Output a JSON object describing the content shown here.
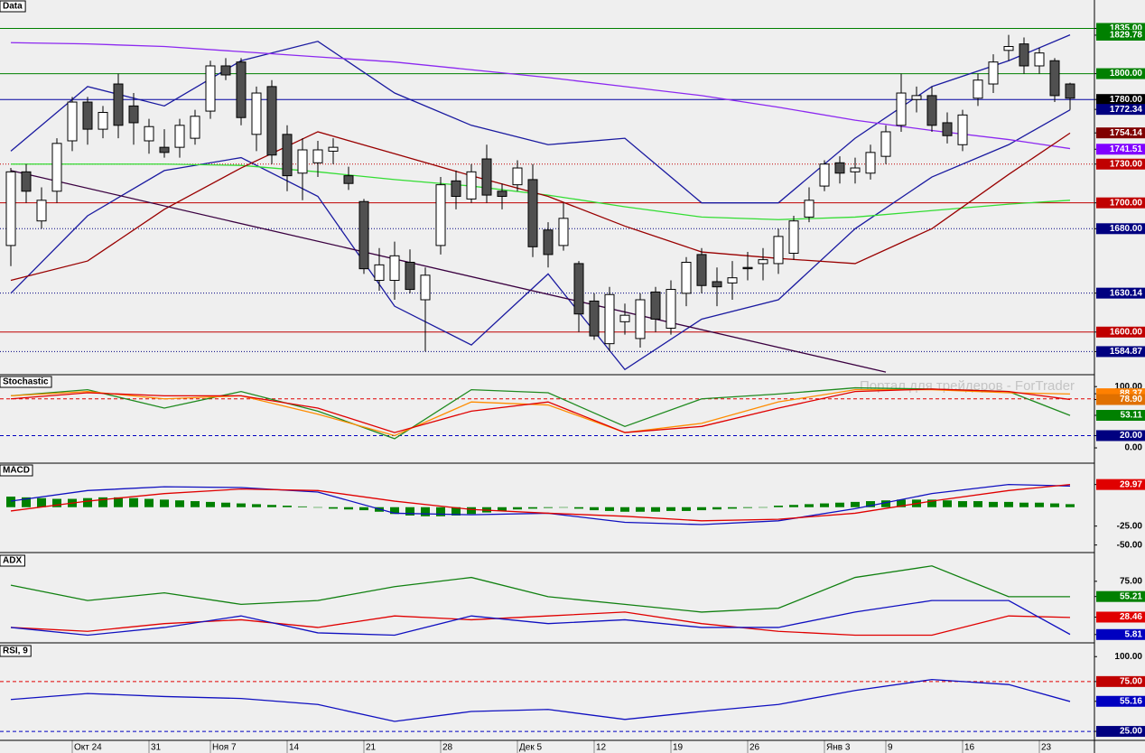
{
  "chart_data": [
    {
      "type": "candlestick",
      "title": "Data",
      "categories": [
        null,
        null,
        null,
        null,
        "Окт 24",
        null,
        null,
        null,
        null,
        "31",
        null,
        null,
        null,
        "Ноя 7",
        null,
        null,
        null,
        null,
        "14",
        null,
        null,
        null,
        null,
        "21",
        null,
        null,
        null,
        null,
        "28",
        null,
        null,
        null,
        null,
        "Дек 5",
        null,
        null,
        null,
        null,
        "12",
        null,
        null,
        null,
        null,
        "19",
        null,
        null,
        null,
        null,
        "26",
        null,
        null,
        null,
        null,
        "Янв 3",
        null,
        null,
        null,
        "9",
        null,
        null,
        null,
        null,
        "16",
        null,
        null,
        null,
        null,
        "23",
        null,
        null
      ],
      "open": [
        1667,
        1724,
        1686,
        1709,
        1748,
        1778,
        1757,
        1792,
        1775,
        1748,
        1743,
        1743,
        1750,
        1771,
        1806,
        1809,
        1753,
        1790,
        1753,
        1723,
        1731,
        1740,
        1721,
        1701,
        1640,
        1640,
        1654,
        1625,
        1667,
        1717,
        1703,
        1734,
        1709,
        1714,
        1718,
        1679,
        1667,
        1653,
        1624,
        1591,
        1608,
        1595,
        1631,
        1603,
        1630,
        1660,
        1639,
        1638,
        1650,
        1653,
        1653,
        1661,
        1689,
        1713,
        1731,
        1724,
        1723,
        1736,
        1760,
        1780,
        1783,
        1762,
        1745,
        1781,
        1792,
        1818,
        1823,
        1806,
        1810,
        1792
      ],
      "high": [
        1727,
        1730,
        1712,
        1750,
        1782,
        1782,
        1775,
        1800,
        1785,
        1765,
        1757,
        1765,
        1772,
        1810,
        1812,
        1812,
        1790,
        1795,
        1760,
        1750,
        1748,
        1750,
        1728,
        1703,
        1665,
        1670,
        1664,
        1650,
        1720,
        1725,
        1730,
        1745,
        1715,
        1733,
        1730,
        1685,
        1700,
        1655,
        1630,
        1635,
        1622,
        1630,
        1635,
        1640,
        1658,
        1665,
        1650,
        1655,
        1662,
        1665,
        1680,
        1690,
        1712,
        1733,
        1736,
        1735,
        1745,
        1760,
        1800,
        1790,
        1790,
        1770,
        1772,
        1800,
        1815,
        1830,
        1828,
        1820,
        1812,
        1793
      ],
      "low": [
        1651,
        1700,
        1680,
        1700,
        1740,
        1745,
        1750,
        1750,
        1745,
        1738,
        1735,
        1735,
        1745,
        1765,
        1795,
        1760,
        1740,
        1730,
        1709,
        1702,
        1720,
        1730,
        1710,
        1645,
        1632,
        1625,
        1630,
        1585,
        1660,
        1695,
        1700,
        1700,
        1695,
        1709,
        1658,
        1650,
        1663,
        1600,
        1594,
        1585,
        1598,
        1588,
        1600,
        1598,
        1620,
        1630,
        1620,
        1625,
        1640,
        1640,
        1645,
        1656,
        1685,
        1709,
        1715,
        1715,
        1718,
        1730,
        1755,
        1770,
        1755,
        1746,
        1740,
        1775,
        1785,
        1810,
        1800,
        1800,
        1778,
        1772
      ],
      "close": [
        1724,
        1709,
        1702,
        1746,
        1778,
        1757,
        1770,
        1760,
        1762,
        1759,
        1739,
        1760,
        1767,
        1806,
        1799,
        1766,
        1785,
        1737,
        1721,
        1741,
        1741,
        1743,
        1715,
        1649,
        1652,
        1659,
        1633,
        1644,
        1714,
        1705,
        1724,
        1706,
        1705,
        1727,
        1666,
        1660,
        1688,
        1614,
        1597,
        1629,
        1613,
        1625,
        1610,
        1633,
        1654,
        1636,
        1635,
        1642,
        1649,
        1656,
        1674,
        1686,
        1702,
        1730,
        1723,
        1727,
        1739,
        1755,
        1785,
        1783,
        1760,
        1752,
        1768,
        1795,
        1809,
        1821,
        1806,
        1816,
        1783,
        1781
      ],
      "up_color": "#ffffff",
      "down_color": "#505050",
      "ylim": [
        1567,
        1857
      ],
      "yticks": [
        {
          "value": 1835,
          "label": "1835.00",
          "color": "#008000",
          "line": "solid",
          "line_color": "#008000"
        },
        {
          "value": 1829.78,
          "label": "1829.78",
          "color": "#008000"
        },
        {
          "value": 1800,
          "label": "1800.00",
          "color": "#008000",
          "line": "solid",
          "line_color": "#008000"
        },
        {
          "value": 1780,
          "label": "1780.00",
          "color": "#000000",
          "line": "solid",
          "line_color": "#0000a0"
        },
        {
          "value": 1772.34,
          "label": "1772.34",
          "color": "#000080"
        },
        {
          "value": 1754.14,
          "label": "1754.14",
          "color": "#800000"
        },
        {
          "value": 1741.51,
          "label": "1741.51",
          "color": "#8000ff"
        },
        {
          "value": 1730,
          "label": "1730.00",
          "color": "#c00000",
          "line": "dotted",
          "line_color": "#c00000"
        },
        {
          "value": 1700,
          "label": "1700.00",
          "color": "#c00000",
          "line": "solid",
          "line_color": "#c00000"
        },
        {
          "value": 1680,
          "label": "1680.00",
          "color": "#000080",
          "line": "dotted",
          "line_color": "#000080"
        },
        {
          "value": 1630.14,
          "label": "1630.14",
          "color": "#000080",
          "line": "dotted",
          "line_color": "#000080"
        },
        {
          "value": 1600,
          "label": "1600.00",
          "color": "#c00000",
          "line": "solid",
          "line_color": "#c00000"
        },
        {
          "value": 1584.87,
          "label": "1584.87",
          "color": "#000080",
          "line": "dotted",
          "line_color": "#000080"
        }
      ],
      "series": [
        {
          "color": "#1a1aa0",
          "x": [
            0,
            5,
            10,
            15,
            20,
            25,
            30,
            35,
            40,
            45,
            50,
            55,
            60,
            65,
            69
          ],
          "values": [
            1740,
            1790,
            1775,
            1810,
            1825,
            1785,
            1760,
            1745,
            1750,
            1700,
            1700,
            1750,
            1790,
            1810,
            1830
          ]
        },
        {
          "color": "#1a1aa0",
          "x": [
            0,
            5,
            10,
            15,
            20,
            25,
            30,
            35,
            40,
            45,
            50,
            55,
            60,
            65,
            69
          ],
          "values": [
            1630,
            1690,
            1725,
            1735,
            1705,
            1620,
            1590,
            1645,
            1571,
            1610,
            1625,
            1680,
            1720,
            1745,
            1772
          ]
        },
        {
          "color": "#8c28f0",
          "x": [
            0,
            5,
            10,
            15,
            20,
            25,
            30,
            35,
            40,
            45,
            50,
            55,
            60,
            65,
            69
          ],
          "values": [
            1824,
            1823,
            1821,
            1817,
            1813,
            1809,
            1803,
            1797,
            1790,
            1783,
            1774,
            1764,
            1756,
            1749,
            1742
          ]
        },
        {
          "color": "#33dd33",
          "x": [
            0,
            5,
            10,
            15,
            20,
            25,
            30,
            35,
            40,
            45,
            50,
            55,
            60,
            65,
            69
          ],
          "values": [
            1730,
            1730,
            1730,
            1729,
            1724,
            1718,
            1713,
            1706,
            1697,
            1689,
            1687,
            1689,
            1694,
            1699,
            1702
          ]
        },
        {
          "color": "#990000",
          "x": [
            0,
            5,
            10,
            15,
            20,
            25,
            30,
            35,
            40,
            45,
            50,
            55,
            60,
            65,
            69
          ],
          "values": [
            1640,
            1655,
            1695,
            1727,
            1755,
            1738,
            1721,
            1705,
            1682,
            1662,
            1657,
            1653,
            1680,
            1722,
            1754
          ]
        },
        {
          "color": "#3a0040",
          "x": [
            0,
            57
          ],
          "values": [
            1725,
            1569
          ]
        }
      ]
    },
    {
      "type": "line",
      "title": "Stochastic",
      "annotation": "Портал для трейдеров - ForTrader",
      "ylim": [
        -25,
        118
      ],
      "yticks": [
        {
          "value": 100,
          "label": "100.00"
        },
        {
          "value": 88.37,
          "label": "88.37",
          "color": "#ff8000"
        },
        {
          "value": 78.9,
          "label": "78.90",
          "color": "#e07000"
        },
        {
          "value": 53.11,
          "label": "53.11",
          "color": "#008000"
        },
        {
          "value": 20,
          "label": "20.00",
          "color": "#000080",
          "line": "dashed",
          "line_color": "#0000c0"
        },
        {
          "value": 0,
          "label": "0.00"
        }
      ],
      "levels": [
        {
          "value": 80,
          "color": "#e00000"
        }
      ],
      "series": [
        {
          "color": "#1f8a1f",
          "x": [
            0,
            5,
            10,
            15,
            20,
            25,
            30,
            35,
            40,
            45,
            50,
            55,
            60,
            65,
            69
          ],
          "values": [
            85,
            95,
            65,
            92,
            60,
            15,
            95,
            90,
            35,
            80,
            88,
            98,
            96,
            92,
            53
          ]
        },
        {
          "color": "#ff8c00",
          "x": [
            0,
            5,
            10,
            15,
            20,
            25,
            30,
            35,
            40,
            45,
            50,
            55,
            60,
            65,
            69
          ],
          "values": [
            85,
            92,
            80,
            85,
            55,
            20,
            75,
            70,
            25,
            40,
            75,
            95,
            95,
            90,
            88
          ]
        },
        {
          "color": "#e00000",
          "x": [
            0,
            5,
            10,
            15,
            20,
            25,
            30,
            35,
            40,
            45,
            50,
            55,
            60,
            65,
            69
          ],
          "values": [
            80,
            90,
            85,
            85,
            65,
            25,
            60,
            75,
            25,
            35,
            65,
            92,
            96,
            92,
            79
          ]
        }
      ]
    },
    {
      "type": "line",
      "title": "MACD",
      "ylim": [
        -60,
        57
      ],
      "yticks": [
        {
          "value": 29.97,
          "label": "29.97",
          "color": "#e00000"
        },
        {
          "value": -25,
          "label": "-25.00"
        },
        {
          "value": -50,
          "label": "-50.00"
        }
      ],
      "histogram": {
        "color": "#008000",
        "values": [
          14,
          13,
          12,
          11,
          11,
          12,
          13,
          13,
          12,
          11,
          10,
          9,
          8,
          7,
          6,
          5,
          4,
          3,
          2,
          1,
          0,
          -2,
          -3,
          -4,
          -6,
          -9,
          -11,
          -12,
          -12,
          -11,
          -9,
          -7,
          -5,
          -3,
          -2,
          -1,
          0,
          -2,
          -4,
          -5,
          -6,
          -6,
          -6,
          -5,
          -5,
          -4,
          -3,
          -2,
          -1,
          0,
          2,
          3,
          4,
          5,
          6,
          7,
          8,
          9,
          10,
          10,
          10,
          9,
          8,
          8,
          7,
          7,
          6,
          6,
          5,
          4
        ]
      },
      "series": [
        {
          "color": "#1010c0",
          "x": [
            0,
            5,
            10,
            15,
            20,
            25,
            30,
            35,
            40,
            45,
            50,
            55,
            60,
            65,
            69
          ],
          "values": [
            8,
            22,
            27,
            26,
            20,
            -8,
            -10,
            -8,
            -20,
            -23,
            -18,
            -2,
            18,
            30,
            28
          ]
        },
        {
          "color": "#e00000",
          "x": [
            0,
            5,
            10,
            15,
            20,
            25,
            30,
            35,
            40,
            45,
            50,
            55,
            60,
            65,
            69
          ],
          "values": [
            -5,
            8,
            18,
            24,
            22,
            8,
            -3,
            -8,
            -12,
            -18,
            -16,
            -8,
            8,
            22,
            30
          ]
        }
      ]
    },
    {
      "type": "line",
      "title": "ADX",
      "ylim": [
        -5,
        110
      ],
      "yticks": [
        {
          "value": 75,
          "label": "75.00"
        },
        {
          "value": 55.21,
          "label": "55.21",
          "color": "#008000"
        },
        {
          "value": 28.46,
          "label": "28.46",
          "color": "#e00000"
        },
        {
          "value": 5.81,
          "label": "5.81",
          "color": "#0000c0"
        }
      ],
      "series": [
        {
          "color": "#108010",
          "x": [
            0,
            5,
            10,
            15,
            20,
            25,
            30,
            35,
            40,
            45,
            50,
            55,
            60,
            65,
            69
          ],
          "values": [
            70,
            50,
            60,
            45,
            50,
            68,
            80,
            55,
            45,
            35,
            40,
            80,
            95,
            55,
            55
          ]
        },
        {
          "color": "#e00000",
          "x": [
            0,
            5,
            10,
            15,
            20,
            25,
            30,
            35,
            40,
            45,
            50,
            55,
            60,
            65,
            69
          ],
          "values": [
            15,
            10,
            20,
            25,
            15,
            30,
            25,
            30,
            35,
            20,
            10,
            5,
            5,
            30,
            28
          ]
        },
        {
          "color": "#1010c0",
          "x": [
            0,
            5,
            10,
            15,
            20,
            25,
            30,
            35,
            40,
            45,
            50,
            55,
            60,
            65,
            69
          ],
          "values": [
            15,
            5,
            15,
            30,
            8,
            5,
            30,
            20,
            25,
            15,
            15,
            35,
            50,
            50,
            6
          ]
        }
      ]
    },
    {
      "type": "line",
      "title": "RSI, 9",
      "ylim": [
        16,
        112
      ],
      "yticks": [
        {
          "value": 100,
          "label": "100.00"
        },
        {
          "value": 75,
          "label": "75.00",
          "color": "#c00000",
          "line": "dashed",
          "line_color": "#e00000"
        },
        {
          "value": 55.16,
          "label": "55.16",
          "color": "#0000c0"
        },
        {
          "value": 25,
          "label": "25.00",
          "color": "#000080",
          "line": "dashed",
          "line_color": "#0000c0"
        }
      ],
      "series": [
        {
          "color": "#1010c0",
          "x": [
            0,
            5,
            10,
            15,
            20,
            25,
            30,
            35,
            40,
            45,
            50,
            55,
            60,
            65,
            69
          ],
          "values": [
            57,
            63,
            60,
            58,
            52,
            35,
            45,
            47,
            37,
            45,
            52,
            66,
            77,
            72,
            55
          ]
        }
      ]
    }
  ]
}
